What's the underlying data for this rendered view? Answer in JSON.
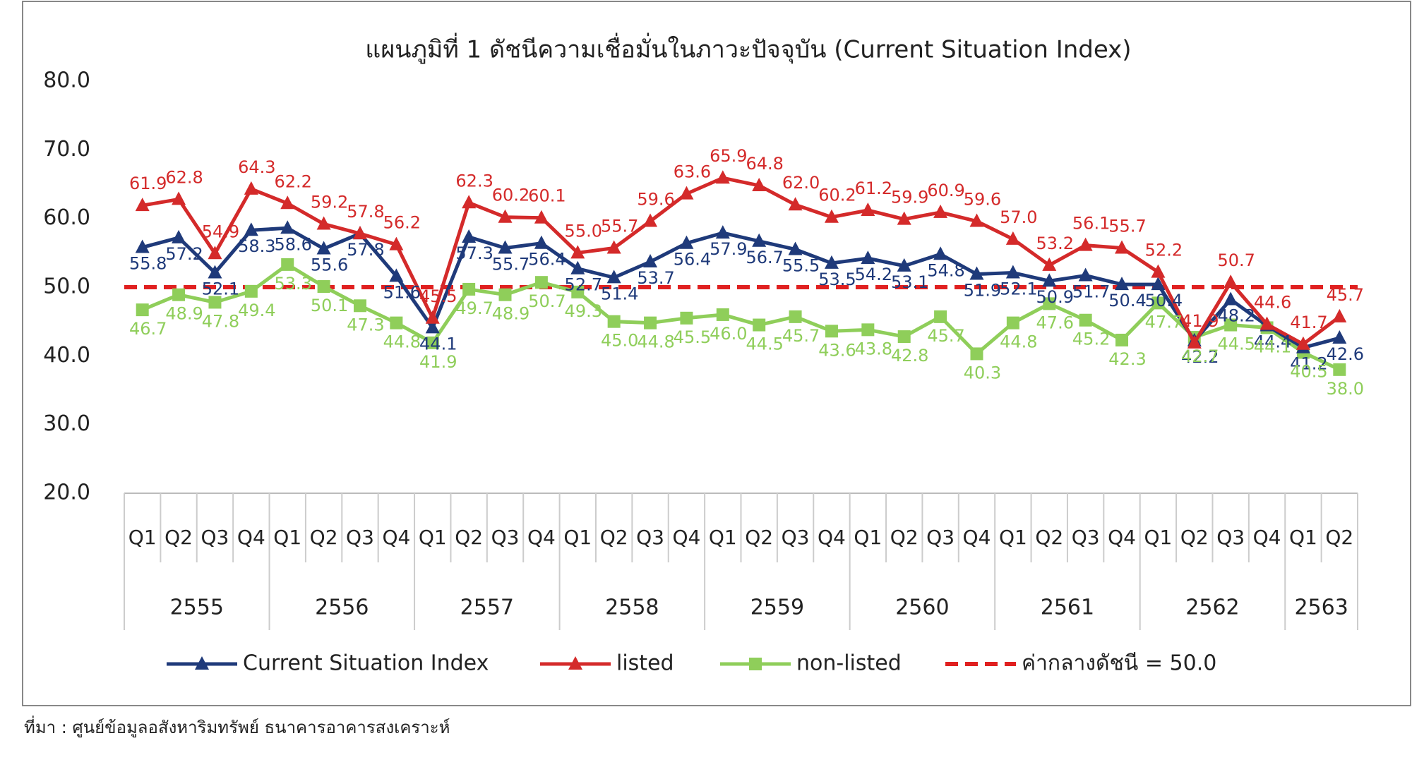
{
  "chart_data": {
    "type": "line",
    "title": "แผนภูมิที่ 1 ดัชนีความเชื่อมั่นในภาวะปัจจุบัน (Current Situation Index)",
    "source": "ที่มา : ศูนย์ข้อมูลอสังหาริมทรัพย์ ธนาคารอาคารสงเคราะห์",
    "categories": [
      "Q1",
      "Q2",
      "Q3",
      "Q4",
      "Q1",
      "Q2",
      "Q3",
      "Q4",
      "Q1",
      "Q2",
      "Q3",
      "Q4",
      "Q1",
      "Q2",
      "Q3",
      "Q4",
      "Q1",
      "Q2",
      "Q3",
      "Q4",
      "Q1",
      "Q2",
      "Q3",
      "Q4",
      "Q1",
      "Q2",
      "Q3",
      "Q4",
      "Q1",
      "Q2",
      "Q3",
      "Q4",
      "Q1",
      "Q2"
    ],
    "x_groups": [
      {
        "label": "2555",
        "count": 4
      },
      {
        "label": "2556",
        "count": 4
      },
      {
        "label": "2557",
        "count": 4
      },
      {
        "label": "2558",
        "count": 4
      },
      {
        "label": "2559",
        "count": 4
      },
      {
        "label": "2560",
        "count": 4
      },
      {
        "label": "2561",
        "count": 4
      },
      {
        "label": "2562",
        "count": 4
      },
      {
        "label": "2563",
        "count": 2
      }
    ],
    "ylim": [
      20,
      80
    ],
    "yticks": [
      {
        "value": 20,
        "label": "20.0"
      },
      {
        "value": 30,
        "label": "30.0"
      },
      {
        "value": 40,
        "label": "40.0"
      },
      {
        "value": 50,
        "label": "50.0"
      },
      {
        "value": 60,
        "label": "60.0"
      },
      {
        "value": 70,
        "label": "70.0"
      },
      {
        "value": 80,
        "label": "80.0"
      }
    ],
    "series": [
      {
        "name": "Current Situation Index",
        "color": "#1f3a7a",
        "marker": "triangle",
        "values": [
          55.8,
          57.2,
          52.1,
          58.3,
          58.6,
          55.6,
          57.8,
          51.6,
          44.1,
          57.3,
          55.7,
          56.4,
          52.7,
          51.4,
          53.7,
          56.4,
          57.9,
          56.7,
          55.5,
          53.5,
          54.2,
          53.1,
          54.8,
          51.9,
          52.1,
          50.9,
          51.7,
          50.4,
          50.4,
          42.2,
          48.2,
          44.4,
          41.2,
          42.6
        ],
        "value_labels": [
          "55.8",
          "57.2",
          "52.1",
          "58.3",
          "58.6",
          "55.6",
          "57.8",
          "51.6",
          "44.1",
          "57.3",
          "55.7",
          "56.4",
          "52.7",
          "51.4",
          "53.7",
          "56.4",
          "57.9",
          "56.7",
          "55.5",
          "53.5",
          "54.2",
          "53.1",
          "54.8",
          "51.9",
          "52.1",
          "50.9",
          "51.7",
          "50.4",
          "50.4",
          "42.2",
          "48.2",
          "44.4",
          "41.2",
          "42.6"
        ]
      },
      {
        "name": "listed",
        "color": "#d42a2a",
        "marker": "triangle",
        "values": [
          61.9,
          62.8,
          54.9,
          64.3,
          62.2,
          59.2,
          57.8,
          56.2,
          45.5,
          62.3,
          60.2,
          60.1,
          55.0,
          55.7,
          59.6,
          63.6,
          65.9,
          64.8,
          62.0,
          60.2,
          61.2,
          59.9,
          60.9,
          59.6,
          57.0,
          53.2,
          56.1,
          55.7,
          52.2,
          41.9,
          50.7,
          44.6,
          41.7,
          45.7
        ],
        "value_labels": [
          "61.9",
          "62.8",
          "54.9",
          "64.3",
          "62.2",
          "59.2",
          "57.8",
          "56.2",
          "45.5",
          "62.3",
          "60.2",
          "60.1",
          "55.0",
          "55.7",
          "59.6",
          "63.6",
          "65.9",
          "64.8",
          "62.0",
          "60.2",
          "61.2",
          "59.9",
          "60.9",
          "59.6",
          "57.0",
          "53.2",
          "56.1",
          "55.7",
          "52.2",
          "41.9",
          "50.7",
          "44.6",
          "41.7",
          "45.7"
        ]
      },
      {
        "name": "non-listed",
        "color": "#8fce5a",
        "marker": "square",
        "values": [
          46.7,
          48.9,
          47.8,
          49.4,
          53.3,
          50.1,
          47.3,
          44.8,
          41.9,
          49.7,
          48.9,
          50.7,
          49.3,
          45.0,
          44.8,
          45.5,
          46.0,
          44.5,
          45.7,
          43.6,
          43.8,
          42.8,
          45.7,
          40.3,
          44.8,
          47.6,
          45.2,
          42.3,
          47.7,
          42.7,
          44.5,
          44.1,
          40.5,
          38.0
        ],
        "value_labels": [
          "46.7",
          "48.9",
          "47.8",
          "49.4",
          "53.3",
          "50.1",
          "47.3",
          "44.8",
          "41.9",
          "49.7",
          "48.9",
          "50.7",
          "49.3",
          "45.0",
          "44.8",
          "45.5",
          "46.0",
          "44.5",
          "45.7",
          "43.6",
          "43.8",
          "42.8",
          "45.7",
          "40.3",
          "44.8",
          "47.6",
          "45.2",
          "42.3",
          "47.7",
          "42.7",
          "44.5",
          "44.1",
          "40.5",
          "38.0"
        ]
      }
    ],
    "reference_line": {
      "name": "ค่ากลางดัชนี = 50.0",
      "value": 50,
      "color": "#e02020",
      "dashed": true
    }
  }
}
